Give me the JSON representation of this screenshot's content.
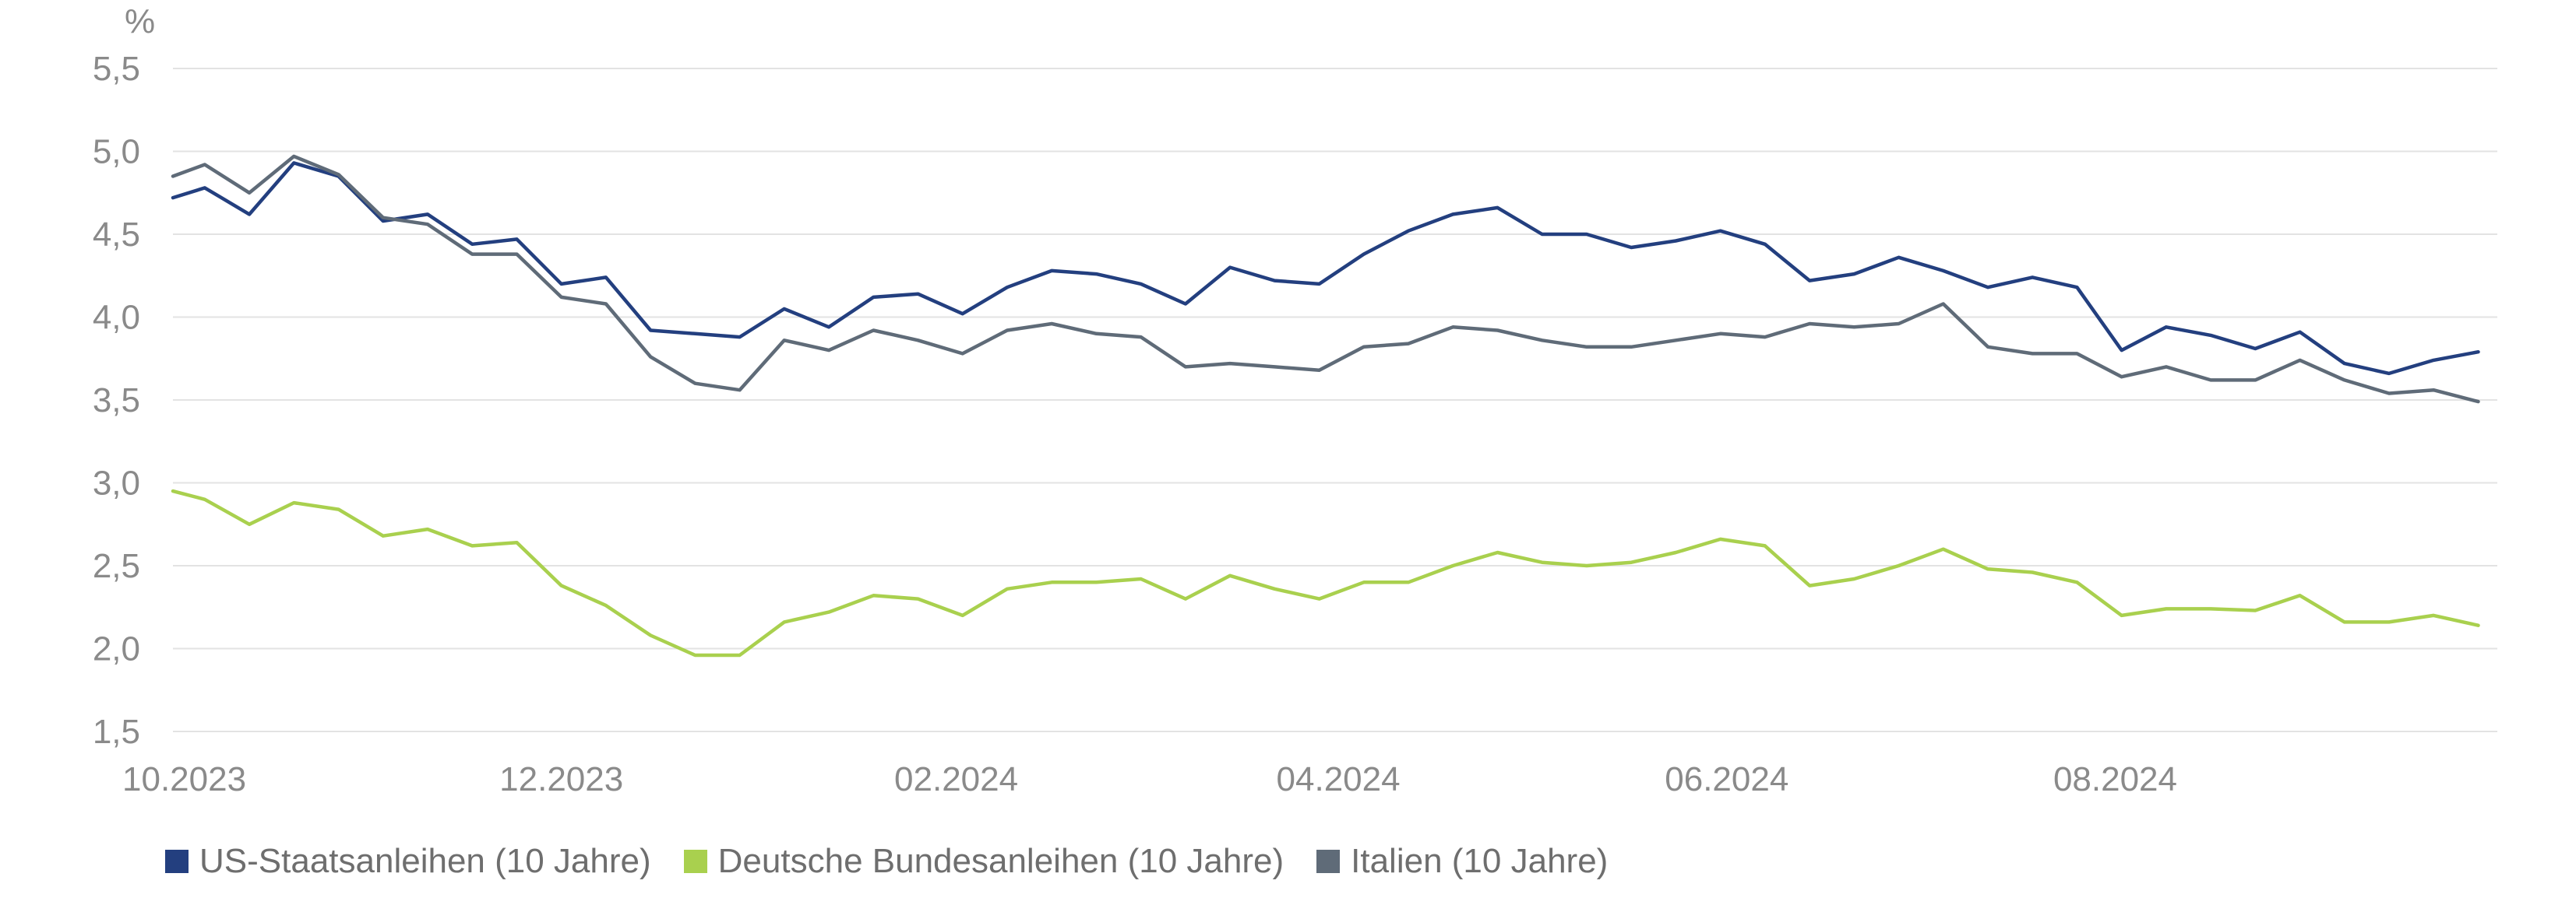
{
  "chart_data": {
    "type": "line",
    "ylabel": "%",
    "ylim": [
      1.5,
      5.5
    ],
    "y_ticks": [
      "5,5",
      "5,0",
      "4,5",
      "4,0",
      "3,5",
      "3,0",
      "2,5",
      "2,0",
      "1,5"
    ],
    "y_tick_values": [
      5.5,
      5.0,
      4.5,
      4.0,
      3.5,
      3.0,
      2.5,
      2.0,
      1.5
    ],
    "x_ticks": [
      "10.2023",
      "12.2023",
      "02.2024",
      "04.2024",
      "06.2024",
      "08.2024"
    ],
    "x_tick_values": [
      "2023-10-01",
      "2023-12-01",
      "2024-02-01",
      "2024-04-01",
      "2024-06-01",
      "2024-08-01"
    ],
    "xlim": [
      "2023-10-01",
      "2024-09-30"
    ],
    "grid": true,
    "legend_position": "bottom-left",
    "series": [
      {
        "name": "US-Staatsanleihen (10 Jahre)",
        "color": "#233f7f",
        "points": [
          [
            "2023-10-01",
            4.72
          ],
          [
            "2023-10-06",
            4.78
          ],
          [
            "2023-10-13",
            4.62
          ],
          [
            "2023-10-20",
            4.93
          ],
          [
            "2023-10-27",
            4.85
          ],
          [
            "2023-11-03",
            4.58
          ],
          [
            "2023-11-10",
            4.62
          ],
          [
            "2023-11-17",
            4.44
          ],
          [
            "2023-11-24",
            4.47
          ],
          [
            "2023-12-01",
            4.2
          ],
          [
            "2023-12-08",
            4.24
          ],
          [
            "2023-12-15",
            3.92
          ],
          [
            "2023-12-22",
            3.9
          ],
          [
            "2023-12-29",
            3.88
          ],
          [
            "2024-01-05",
            4.05
          ],
          [
            "2024-01-12",
            3.94
          ],
          [
            "2024-01-19",
            4.12
          ],
          [
            "2024-01-26",
            4.14
          ],
          [
            "2024-02-02",
            4.02
          ],
          [
            "2024-02-09",
            4.18
          ],
          [
            "2024-02-16",
            4.28
          ],
          [
            "2024-02-23",
            4.26
          ],
          [
            "2024-03-01",
            4.2
          ],
          [
            "2024-03-08",
            4.08
          ],
          [
            "2024-03-15",
            4.3
          ],
          [
            "2024-03-22",
            4.22
          ],
          [
            "2024-03-29",
            4.2
          ],
          [
            "2024-04-05",
            4.38
          ],
          [
            "2024-04-12",
            4.52
          ],
          [
            "2024-04-19",
            4.62
          ],
          [
            "2024-04-26",
            4.66
          ],
          [
            "2024-05-03",
            4.5
          ],
          [
            "2024-05-10",
            4.5
          ],
          [
            "2024-05-17",
            4.42
          ],
          [
            "2024-05-24",
            4.46
          ],
          [
            "2024-05-31",
            4.52
          ],
          [
            "2024-06-07",
            4.44
          ],
          [
            "2024-06-14",
            4.22
          ],
          [
            "2024-06-21",
            4.26
          ],
          [
            "2024-06-28",
            4.36
          ],
          [
            "2024-07-05",
            4.28
          ],
          [
            "2024-07-12",
            4.18
          ],
          [
            "2024-07-19",
            4.24
          ],
          [
            "2024-07-26",
            4.18
          ],
          [
            "2024-08-02",
            3.8
          ],
          [
            "2024-08-09",
            3.94
          ],
          [
            "2024-08-16",
            3.89
          ],
          [
            "2024-08-23",
            3.81
          ],
          [
            "2024-08-30",
            3.91
          ],
          [
            "2024-09-06",
            3.72
          ],
          [
            "2024-09-13",
            3.66
          ],
          [
            "2024-09-20",
            3.74
          ],
          [
            "2024-09-27",
            3.79
          ]
        ]
      },
      {
        "name": "Deutsche Bundesanleihen (10 Jahre)",
        "color": "#a9d04e",
        "points": [
          [
            "2023-10-01",
            2.95
          ],
          [
            "2023-10-06",
            2.9
          ],
          [
            "2023-10-13",
            2.75
          ],
          [
            "2023-10-20",
            2.88
          ],
          [
            "2023-10-27",
            2.84
          ],
          [
            "2023-11-03",
            2.68
          ],
          [
            "2023-11-10",
            2.72
          ],
          [
            "2023-11-17",
            2.62
          ],
          [
            "2023-11-24",
            2.64
          ],
          [
            "2023-12-01",
            2.38
          ],
          [
            "2023-12-08",
            2.26
          ],
          [
            "2023-12-15",
            2.08
          ],
          [
            "2023-12-22",
            1.96
          ],
          [
            "2023-12-29",
            1.96
          ],
          [
            "2024-01-05",
            2.16
          ],
          [
            "2024-01-12",
            2.22
          ],
          [
            "2024-01-19",
            2.32
          ],
          [
            "2024-01-26",
            2.3
          ],
          [
            "2024-02-02",
            2.2
          ],
          [
            "2024-02-09",
            2.36
          ],
          [
            "2024-02-16",
            2.4
          ],
          [
            "2024-02-23",
            2.4
          ],
          [
            "2024-03-01",
            2.42
          ],
          [
            "2024-03-08",
            2.3
          ],
          [
            "2024-03-15",
            2.44
          ],
          [
            "2024-03-22",
            2.36
          ],
          [
            "2024-03-29",
            2.3
          ],
          [
            "2024-04-05",
            2.4
          ],
          [
            "2024-04-12",
            2.4
          ],
          [
            "2024-04-19",
            2.5
          ],
          [
            "2024-04-26",
            2.58
          ],
          [
            "2024-05-03",
            2.52
          ],
          [
            "2024-05-10",
            2.5
          ],
          [
            "2024-05-17",
            2.52
          ],
          [
            "2024-05-24",
            2.58
          ],
          [
            "2024-05-31",
            2.66
          ],
          [
            "2024-06-07",
            2.62
          ],
          [
            "2024-06-14",
            2.38
          ],
          [
            "2024-06-21",
            2.42
          ],
          [
            "2024-06-28",
            2.5
          ],
          [
            "2024-07-05",
            2.6
          ],
          [
            "2024-07-12",
            2.48
          ],
          [
            "2024-07-19",
            2.46
          ],
          [
            "2024-07-26",
            2.4
          ],
          [
            "2024-08-02",
            2.2
          ],
          [
            "2024-08-09",
            2.24
          ],
          [
            "2024-08-16",
            2.24
          ],
          [
            "2024-08-23",
            2.23
          ],
          [
            "2024-08-30",
            2.32
          ],
          [
            "2024-09-06",
            2.16
          ],
          [
            "2024-09-13",
            2.16
          ],
          [
            "2024-09-20",
            2.2
          ],
          [
            "2024-09-27",
            2.14
          ]
        ]
      },
      {
        "name": "Italien (10 Jahre)",
        "color": "#5f6b78",
        "points": [
          [
            "2023-10-01",
            4.85
          ],
          [
            "2023-10-06",
            4.92
          ],
          [
            "2023-10-13",
            4.75
          ],
          [
            "2023-10-20",
            4.97
          ],
          [
            "2023-10-27",
            4.86
          ],
          [
            "2023-11-03",
            4.6
          ],
          [
            "2023-11-10",
            4.56
          ],
          [
            "2023-11-17",
            4.38
          ],
          [
            "2023-11-24",
            4.38
          ],
          [
            "2023-12-01",
            4.12
          ],
          [
            "2023-12-08",
            4.08
          ],
          [
            "2023-12-15",
            3.76
          ],
          [
            "2023-12-22",
            3.6
          ],
          [
            "2023-12-29",
            3.56
          ],
          [
            "2024-01-05",
            3.86
          ],
          [
            "2024-01-12",
            3.8
          ],
          [
            "2024-01-19",
            3.92
          ],
          [
            "2024-01-26",
            3.86
          ],
          [
            "2024-02-02",
            3.78
          ],
          [
            "2024-02-09",
            3.92
          ],
          [
            "2024-02-16",
            3.96
          ],
          [
            "2024-02-23",
            3.9
          ],
          [
            "2024-03-01",
            3.88
          ],
          [
            "2024-03-08",
            3.7
          ],
          [
            "2024-03-15",
            3.72
          ],
          [
            "2024-03-22",
            3.7
          ],
          [
            "2024-03-29",
            3.68
          ],
          [
            "2024-04-05",
            3.82
          ],
          [
            "2024-04-12",
            3.84
          ],
          [
            "2024-04-19",
            3.94
          ],
          [
            "2024-04-26",
            3.92
          ],
          [
            "2024-05-03",
            3.86
          ],
          [
            "2024-05-10",
            3.82
          ],
          [
            "2024-05-17",
            3.82
          ],
          [
            "2024-05-24",
            3.86
          ],
          [
            "2024-05-31",
            3.9
          ],
          [
            "2024-06-07",
            3.88
          ],
          [
            "2024-06-14",
            3.96
          ],
          [
            "2024-06-21",
            3.94
          ],
          [
            "2024-06-28",
            3.96
          ],
          [
            "2024-07-05",
            4.08
          ],
          [
            "2024-07-12",
            3.82
          ],
          [
            "2024-07-19",
            3.78
          ],
          [
            "2024-07-26",
            3.78
          ],
          [
            "2024-08-02",
            3.64
          ],
          [
            "2024-08-09",
            3.7
          ],
          [
            "2024-08-16",
            3.62
          ],
          [
            "2024-08-23",
            3.62
          ],
          [
            "2024-08-30",
            3.74
          ],
          [
            "2024-09-06",
            3.62
          ],
          [
            "2024-09-13",
            3.54
          ],
          [
            "2024-09-20",
            3.56
          ],
          [
            "2024-09-27",
            3.49
          ]
        ]
      }
    ]
  }
}
